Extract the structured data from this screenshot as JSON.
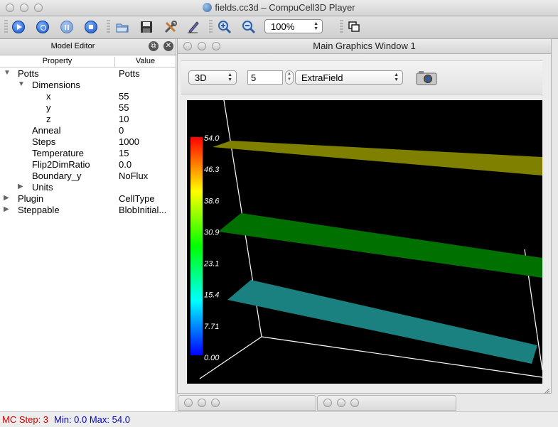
{
  "window": {
    "title": "fields.cc3d – CompuCell3D Player"
  },
  "toolbar": {
    "buttons": [
      {
        "name": "run-button",
        "icon": "play-icon"
      },
      {
        "name": "step-button",
        "icon": "step-icon"
      },
      {
        "name": "pause-button",
        "icon": "pause-icon"
      },
      {
        "name": "stop-button",
        "icon": "stop-icon"
      },
      {
        "name": "open-button",
        "icon": "folder-icon"
      },
      {
        "name": "save-button",
        "icon": "floppy-icon"
      },
      {
        "name": "configure-button",
        "icon": "tools-icon"
      },
      {
        "name": "edit-button",
        "icon": "pencil-icon"
      },
      {
        "name": "zoom-in-button",
        "icon": "zoom-in-icon"
      },
      {
        "name": "zoom-out-button",
        "icon": "zoom-out-icon"
      }
    ],
    "zoom_value": "100%"
  },
  "model_editor": {
    "title": "Model Editor",
    "col_property": "Property",
    "col_value": "Value",
    "rows": [
      {
        "property": "Potts",
        "value": "Potts",
        "level": 0,
        "arrow": "expanded"
      },
      {
        "property": "Dimensions",
        "value": "",
        "level": 1,
        "arrow": "expanded"
      },
      {
        "property": "x",
        "value": "55",
        "level": 3,
        "arrow": "none"
      },
      {
        "property": "y",
        "value": "55",
        "level": 3,
        "arrow": "none"
      },
      {
        "property": "z",
        "value": "10",
        "level": 3,
        "arrow": "none"
      },
      {
        "property": "Anneal",
        "value": "0",
        "level": 2,
        "arrow": "none"
      },
      {
        "property": "Steps",
        "value": "1000",
        "level": 2,
        "arrow": "none"
      },
      {
        "property": "Temperature",
        "value": "15",
        "level": 2,
        "arrow": "none"
      },
      {
        "property": "Flip2DimRatio",
        "value": "0.0",
        "level": 2,
        "arrow": "none"
      },
      {
        "property": "Boundary_y",
        "value": "NoFlux",
        "level": 2,
        "arrow": "none"
      },
      {
        "property": "Units",
        "value": "",
        "level": 1,
        "arrow": "collapsed"
      },
      {
        "property": "Plugin",
        "value": "CellType",
        "level": 0,
        "arrow": "collapsed"
      },
      {
        "property": "Steppable",
        "value": "BlobInitial...",
        "level": 0,
        "arrow": "collapsed"
      }
    ]
  },
  "graphics": {
    "title": "Main Graphics Window 1",
    "view_mode": "3D",
    "slice_value": "5",
    "field": "ExtraField",
    "colorbar_labels": [
      "54.0",
      "46.3",
      "38.6",
      "30.9",
      "23.1",
      "15.4",
      "7.71",
      "0.00"
    ]
  },
  "status": {
    "mc_step": "MC Step: 3",
    "minmax": "Min: 0.0 Max: 54.0"
  },
  "colors": {
    "status_red": "#d00000",
    "status_blue": "#0000cc",
    "plane_top": "#808000",
    "plane_mid": "#007000",
    "plane_low": "#1a8080"
  }
}
